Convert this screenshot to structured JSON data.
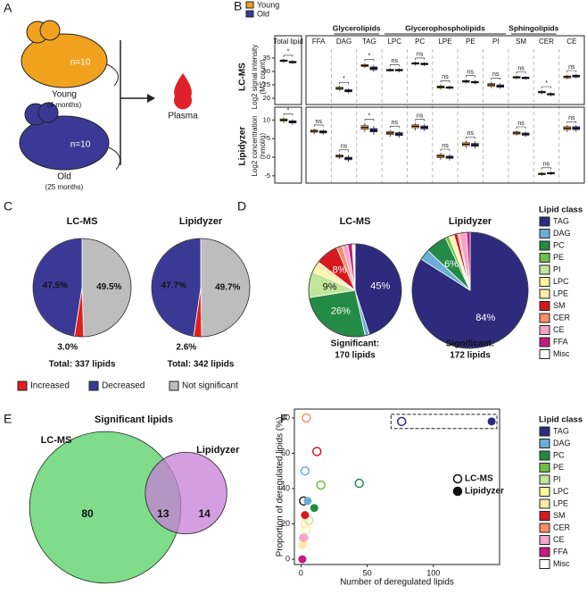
{
  "panel_labels": [
    "A",
    "B",
    "C",
    "D",
    "E",
    "F"
  ],
  "diagram": {
    "young": {
      "n": "n=10",
      "label": "Young",
      "age": "(4 months)"
    },
    "old": {
      "n": "n=10",
      "label": "Old",
      "age": "(25 months)"
    },
    "target": "Plasma"
  },
  "chart_data": [
    {
      "type": "box",
      "categories": [
        "Total lipid",
        "FFA",
        "DAG",
        "TAG",
        "LPC",
        "PC",
        "LPE",
        "PE",
        "PI",
        "SM",
        "CER",
        "CE"
      ],
      "groups": [
        "Glycerolipids",
        "Glycerophospholipids",
        "Sphingolipids"
      ],
      "series": [
        {
          "name": "Young",
          "color": "#f0a21e"
        },
        {
          "name": "Old",
          "color": "#3a3a96"
        }
      ],
      "panels": [
        {
          "title": "LC-MS",
          "ylabel": [
            "Log2 signal intensity",
            "(MS count)"
          ],
          "ylim": [
            19,
            37
          ],
          "yticks": [
            20,
            25,
            30,
            35
          ],
          "significance": [
            "*",
            null,
            "*",
            "*",
            "ns",
            "ns",
            "ns",
            "ns",
            "ns",
            "ns",
            "*",
            "ns"
          ],
          "values": [
            {
              "low": [
                33.2,
                null,
                22.8,
                31.3,
                29.8,
                32.2,
                23.2,
                25.5,
                23.8,
                27.1,
                21.5,
                27.1
              ],
              "q1": [
                33.7,
                null,
                23.3,
                31.8,
                30.2,
                32.7,
                23.8,
                26,
                24.5,
                27.5,
                22,
                27.6
              ],
              "median": [
                34,
                null,
                23.7,
                32.2,
                30.5,
                33,
                24.2,
                26.3,
                25,
                27.8,
                22.3,
                28
              ],
              "q3": [
                34.3,
                null,
                24.1,
                32.6,
                30.8,
                33.3,
                24.6,
                26.6,
                25.5,
                28.1,
                22.6,
                28.3
              ],
              "high": [
                34.7,
                null,
                24.6,
                33.1,
                31.2,
                33.7,
                25.2,
                27.1,
                26.2,
                28.5,
                23,
                28.7
              ]
            },
            {
              "low": [
                32.7,
                null,
                21.8,
                29.8,
                29.7,
                32,
                23.2,
                25.2,
                23.5,
                26.9,
                20.7,
                27.4
              ],
              "q1": [
                33.2,
                null,
                22.4,
                30.6,
                30.2,
                32.5,
                23.7,
                25.7,
                24.1,
                27.3,
                21.2,
                27.9
              ],
              "median": [
                33.5,
                null,
                22.8,
                31.2,
                30.5,
                32.8,
                24,
                26,
                24.5,
                27.6,
                21.5,
                28.3
              ],
              "q3": [
                33.8,
                null,
                23.2,
                31.7,
                30.8,
                33.1,
                24.3,
                26.3,
                25,
                27.9,
                21.8,
                28.6
              ],
              "high": [
                34.2,
                null,
                23.7,
                32.4,
                31.2,
                33.5,
                24.7,
                26.8,
                25.6,
                28.3,
                22.3,
                29
              ]
            }
          ]
        },
        {
          "title": "Lipidyzer",
          "ylabel": [
            "Log2 concentration",
            "(nmol/g)"
          ],
          "ylim": [
            -6,
            12
          ],
          "yticks": [
            -5,
            0,
            5,
            10
          ],
          "significance": [
            "*",
            "ns",
            "ns",
            "*",
            "ns",
            "ns",
            "ns",
            "ns",
            null,
            "ns",
            "ns",
            "ns"
          ],
          "values": [
            {
              "low": [
                9.2,
                6.2,
                -0.5,
                6.8,
                5.5,
                7.2,
                -0.7,
                2.5,
                null,
                5.8,
                -5,
                6.8
              ],
              "q1": [
                9.7,
                6.7,
                0,
                7.5,
                6.1,
                7.9,
                -0.1,
                3.1,
                null,
                6.2,
                -4.7,
                7.4
              ],
              "median": [
                10,
                7,
                0.3,
                8,
                6.5,
                8.3,
                0.3,
                3.5,
                null,
                6.5,
                -4.5,
                7.8
              ],
              "q3": [
                10.3,
                7.3,
                0.6,
                8.5,
                6.9,
                8.7,
                0.7,
                3.9,
                null,
                6.8,
                -4.3,
                8.2
              ],
              "high": [
                10.7,
                7.7,
                1,
                9.2,
                7.4,
                9.2,
                1.2,
                4.5,
                null,
                7.2,
                -4,
                8.6
              ]
            },
            {
              "low": [
                8.7,
                6,
                -1.3,
                6.1,
                5.2,
                7,
                -0.9,
                2.3,
                null,
                5.5,
                -4.8,
                6.8
              ],
              "q1": [
                9.2,
                6.5,
                -0.7,
                6.8,
                5.8,
                7.6,
                -0.3,
                2.9,
                null,
                5.9,
                -4.5,
                7.4
              ],
              "median": [
                9.5,
                6.8,
                -0.3,
                7.2,
                6.2,
                8,
                0,
                3.3,
                null,
                6.2,
                -4.3,
                7.8
              ],
              "q3": [
                9.8,
                7.1,
                0,
                7.7,
                6.6,
                8.4,
                0.3,
                3.7,
                null,
                6.5,
                -4.1,
                8.2
              ],
              "high": [
                10.2,
                7.5,
                0.6,
                8.4,
                7,
                8.9,
                0.8,
                4.3,
                null,
                6.9,
                -3.8,
                8.6
              ]
            }
          ]
        }
      ]
    },
    {
      "type": "pie",
      "categories": [
        "Increased",
        "Decreased",
        "Not significant"
      ],
      "colors": [
        "#e02020",
        "#3a3a96",
        "#bdbdbd"
      ],
      "pies": [
        {
          "title": "LC-MS",
          "values": [
            3.0,
            47.5,
            49.5
          ],
          "value_labels": [
            "3.0%",
            "47.5%",
            "49.5%"
          ],
          "footer": [
            "Total: 337 lipids"
          ]
        },
        {
          "title": "Lipidyzer",
          "values": [
            2.6,
            47.7,
            49.7
          ],
          "value_labels": [
            "2.6%",
            "47.7%",
            "49.7%"
          ],
          "footer": [
            "Total: 342 lipids"
          ]
        }
      ]
    },
    {
      "type": "pie",
      "legend_title": "Lipid class",
      "categories": [
        "TAG",
        "DAG",
        "PC",
        "PE",
        "PI",
        "LPC",
        "LPE",
        "SM",
        "CER",
        "CE",
        "FFA",
        "Misc"
      ],
      "colors": [
        "#2e2a7e",
        "#6baed6",
        "#238b45",
        "#6cc04a",
        "#c2e699",
        "#fff59d",
        "#fde9a8",
        "#d7191c",
        "#fc8d6a",
        "#f4a6c8",
        "#c51b7d",
        "#ffffff"
      ],
      "pies": [
        {
          "title": "LC-MS",
          "values": [
            45,
            1.5,
            26,
            0,
            9,
            2,
            2,
            8,
            2,
            2,
            1.5,
            1
          ],
          "value_labels": [
            "45%",
            null,
            "26%",
            null,
            "9%",
            null,
            null,
            "8%",
            null,
            null,
            null,
            null
          ],
          "footer": [
            "Significant:",
            "170 lipids"
          ]
        },
        {
          "title": "Lipidyzer",
          "values": [
            84,
            3,
            6,
            1,
            0,
            1,
            0.5,
            1,
            0.5,
            2,
            1,
            0
          ],
          "value_labels": [
            "84%",
            null,
            "6%",
            null,
            null,
            null,
            null,
            null,
            null,
            null,
            null,
            null
          ],
          "footer": [
            "Significant:",
            "172 lipids"
          ]
        }
      ]
    },
    {
      "type": "venn",
      "title": "Significant lipids",
      "sets": [
        {
          "name": "LC-MS",
          "value": 80,
          "color": "#7fdc8a"
        },
        {
          "name": "Lipidyzer",
          "value": 14,
          "color": "#c77dd6"
        }
      ],
      "intersection": 13
    },
    {
      "type": "scatter",
      "xlabel": "Number of deregulated lipids",
      "ylabel": "Proportion of deregulated lipids (%)",
      "xlim": [
        -5,
        150
      ],
      "xticks": [
        0,
        50,
        100
      ],
      "ylim": [
        -3,
        85
      ],
      "yticks": [
        0,
        20,
        40,
        60,
        80
      ],
      "legend_title": "Lipid class",
      "categories": [
        "TAG",
        "DAG",
        "PC",
        "PE",
        "PI",
        "LPC",
        "LPE",
        "SM",
        "CER",
        "CE",
        "FFA",
        "Misc"
      ],
      "colors": [
        "#2e2a7e",
        "#6baed6",
        "#238b45",
        "#6cc04a",
        "#c2e699",
        "#fff59d",
        "#fde9a8",
        "#d7191c",
        "#fc8d6a",
        "#f4a6c8",
        "#c51b7d",
        "#ffffff"
      ],
      "series": [
        {
          "name": "LC-MS",
          "marker": "open",
          "x": [
            76,
            3,
            44,
            15,
            6,
            4,
            3,
            12,
            4,
            2,
            null,
            2
          ],
          "y": [
            78,
            50,
            43,
            42,
            22,
            17,
            20,
            61,
            80,
            12,
            null,
            33
          ]
        },
        {
          "name": "Lipidyzer",
          "marker": "filled",
          "x": [
            144,
            5,
            10,
            null,
            null,
            2,
            1,
            3,
            null,
            2,
            1,
            null
          ],
          "y": [
            78,
            33,
            29,
            null,
            null,
            10,
            8,
            25,
            null,
            12,
            0,
            null
          ]
        }
      ]
    }
  ]
}
